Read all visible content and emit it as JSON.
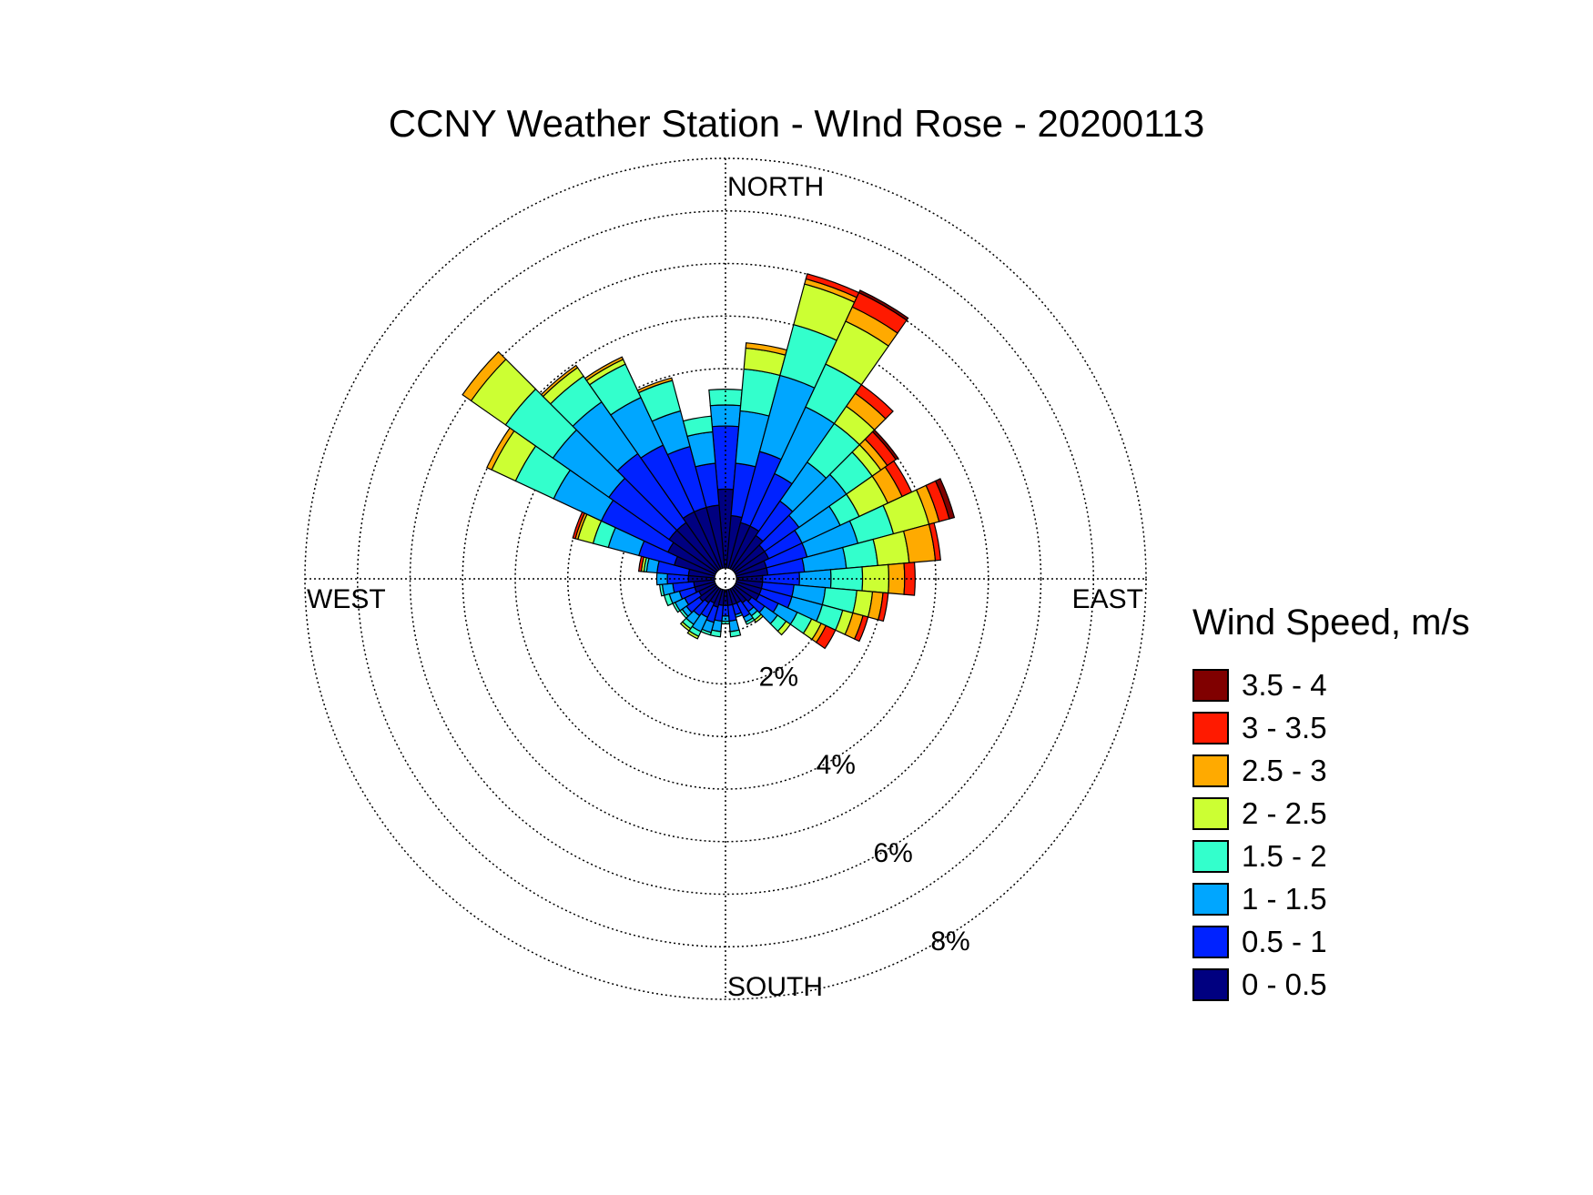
{
  "chart_data": {
    "type": "wind-rose",
    "title": "CCNY Weather Station - WInd Rose - 20200113",
    "compass_labels": {
      "north": "NORTH",
      "east": "EAST",
      "south": "SOUTH",
      "west": "WEST"
    },
    "radial_ticks": [
      {
        "value": 2,
        "label": "2%"
      },
      {
        "value": 4,
        "label": "4%"
      },
      {
        "value": 6,
        "label": "6%"
      },
      {
        "value": 8,
        "label": "8%"
      }
    ],
    "radial_max": 8,
    "legend_title": "Wind Speed, m/s",
    "bins": [
      {
        "label": "0 - 0.5",
        "color": "#000080"
      },
      {
        "label": "0.5 - 1",
        "color": "#0022ff"
      },
      {
        "label": "1 - 1.5",
        "color": "#00a6ff"
      },
      {
        "label": "1.5 - 2",
        "color": "#33ffcc"
      },
      {
        "label": "2 - 2.5",
        "color": "#ccff33"
      },
      {
        "label": "2.5 - 3",
        "color": "#ffaa00"
      },
      {
        "label": "3 - 3.5",
        "color": "#ff1a00"
      },
      {
        "label": "3.5 - 4",
        "color": "#800000"
      }
    ],
    "sector_width_deg": 10,
    "sectors": [
      {
        "direction": 0,
        "values": [
          1.5,
          1.2,
          0.4,
          0.3,
          0,
          0,
          0,
          0
        ]
      },
      {
        "direction": 10,
        "values": [
          1.0,
          1.0,
          1.0,
          0.8,
          0.4,
          0.1,
          0,
          0
        ]
      },
      {
        "direction": 20,
        "values": [
          0.9,
          1.4,
          1.5,
          1.0,
          0.8,
          0.1,
          0.1,
          0
        ]
      },
      {
        "direction": 30,
        "values": [
          0.9,
          1.1,
          1.4,
          0.9,
          0.9,
          0.3,
          0.3,
          0.05
        ]
      },
      {
        "direction": 40,
        "values": [
          0.8,
          0.8,
          0.9,
          0.9,
          0.4,
          0.3,
          0.2,
          0
        ]
      },
      {
        "direction": 50,
        "values": [
          0.7,
          0.8,
          1.1,
          0.6,
          0.2,
          0.15,
          0.2,
          0.05
        ]
      },
      {
        "direction": 60,
        "values": [
          0.7,
          0.7,
          0.8,
          0.4,
          0.6,
          0.3,
          0.2,
          0
        ]
      },
      {
        "direction": 70,
        "values": [
          0.6,
          0.8,
          1.0,
          0.7,
          0.7,
          0.2,
          0.2,
          0.1
        ]
      },
      {
        "direction": 80,
        "values": [
          0.6,
          0.7,
          0.8,
          0.6,
          0.6,
          0.5,
          0.1,
          0
        ]
      },
      {
        "direction": 90,
        "values": [
          0.5,
          0.7,
          0.6,
          0.6,
          0.5,
          0.3,
          0.2,
          0
        ]
      },
      {
        "direction": 100,
        "values": [
          0.5,
          0.6,
          0.6,
          0.6,
          0.3,
          0.2,
          0.1,
          0
        ]
      },
      {
        "direction": 110,
        "values": [
          0.5,
          0.6,
          0.6,
          0.4,
          0.2,
          0.2,
          0.1,
          0
        ]
      },
      {
        "direction": 120,
        "values": [
          0.5,
          0.4,
          0.4,
          0.3,
          0.2,
          0.1,
          0.2,
          0
        ]
      },
      {
        "direction": 130,
        "values": [
          0.4,
          0.3,
          0.3,
          0.2,
          0.1,
          0,
          0,
          0
        ]
      },
      {
        "direction": 140,
        "values": [
          0.35,
          0.2,
          0.1,
          0.1,
          0.05,
          0,
          0,
          0
        ]
      },
      {
        "direction": 150,
        "values": [
          0.3,
          0.3,
          0.1,
          0.05,
          0,
          0,
          0,
          0
        ]
      },
      {
        "direction": 160,
        "values": [
          0.3,
          0.2,
          0.05,
          0,
          0,
          0,
          0,
          0
        ]
      },
      {
        "direction": 170,
        "values": [
          0.3,
          0.3,
          0.2,
          0.1,
          0,
          0,
          0,
          0
        ]
      },
      {
        "direction": 180,
        "values": [
          0.3,
          0.2,
          0.1,
          0.05,
          0,
          0,
          0,
          0
        ]
      },
      {
        "direction": 190,
        "values": [
          0.3,
          0.3,
          0.2,
          0.1,
          0,
          0,
          0,
          0
        ]
      },
      {
        "direction": 200,
        "values": [
          0.35,
          0.3,
          0.2,
          0.05,
          0,
          0,
          0,
          0
        ]
      },
      {
        "direction": 210,
        "values": [
          0.3,
          0.3,
          0.3,
          0.1,
          0.05,
          0,
          0,
          0
        ]
      },
      {
        "direction": 220,
        "values": [
          0.35,
          0.3,
          0.2,
          0.1,
          0.05,
          0,
          0,
          0
        ]
      },
      {
        "direction": 230,
        "values": [
          0.4,
          0.3,
          0.1,
          0.05,
          0,
          0,
          0,
          0
        ]
      },
      {
        "direction": 240,
        "values": [
          0.35,
          0.3,
          0.2,
          0.05,
          0,
          0,
          0,
          0
        ]
      },
      {
        "direction": 250,
        "values": [
          0.4,
          0.3,
          0.2,
          0.1,
          0,
          0,
          0,
          0
        ]
      },
      {
        "direction": 260,
        "values": [
          0.4,
          0.4,
          0.2,
          0.05,
          0,
          0,
          0,
          0
        ]
      },
      {
        "direction": 270,
        "values": [
          0.5,
          0.4,
          0.2,
          0,
          0,
          0,
          0,
          0
        ]
      },
      {
        "direction": 280,
        "values": [
          0.5,
          0.6,
          0.2,
          0.05,
          0.05,
          0,
          0.05,
          0
        ]
      },
      {
        "direction": 290,
        "values": [
          0.8,
          0.7,
          0.6,
          0.3,
          0.3,
          0.05,
          0.05,
          0
        ]
      },
      {
        "direction": 300,
        "values": [
          1.0,
          1.4,
          1.0,
          0.8,
          0.5,
          0.1,
          0,
          0
        ]
      },
      {
        "direction": 310,
        "values": [
          1.1,
          1.4,
          1.3,
          1.1,
          0.8,
          0.2,
          0,
          0
        ]
      },
      {
        "direction": 320,
        "values": [
          1.1,
          1.6,
          1.2,
          0.6,
          0.2,
          0.05,
          0,
          0
        ]
      },
      {
        "direction": 330,
        "values": [
          1.2,
          1.4,
          1.0,
          0.7,
          0.1,
          0.05,
          0,
          0
        ]
      },
      {
        "direction": 340,
        "values": [
          1.2,
          1.2,
          0.7,
          0.6,
          0,
          0.05,
          0,
          0
        ]
      },
      {
        "direction": 350,
        "values": [
          1.2,
          0.8,
          0.6,
          0.3,
          0,
          0,
          0,
          0
        ]
      }
    ]
  }
}
